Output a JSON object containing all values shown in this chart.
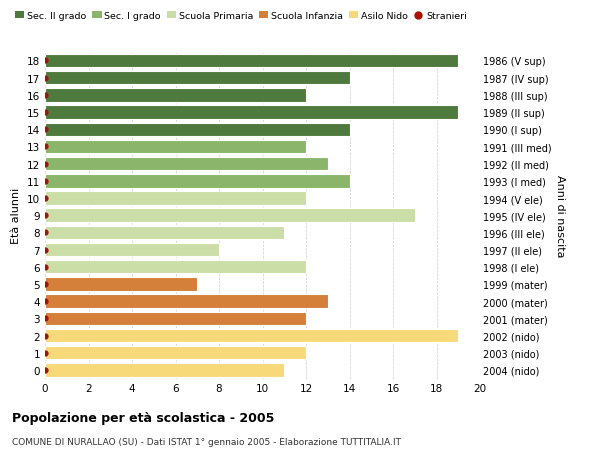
{
  "ages": [
    0,
    1,
    2,
    3,
    4,
    5,
    6,
    7,
    8,
    9,
    10,
    11,
    12,
    13,
    14,
    15,
    16,
    17,
    18
  ],
  "values": [
    11,
    12,
    19,
    12,
    13,
    7,
    12,
    8,
    11,
    17,
    12,
    14,
    13,
    12,
    14,
    19,
    12,
    14,
    19
  ],
  "years": [
    "2004 (nido)",
    "2003 (nido)",
    "2002 (nido)",
    "2001 (mater)",
    "2000 (mater)",
    "1999 (mater)",
    "1998 (I ele)",
    "1997 (II ele)",
    "1996 (III ele)",
    "1995 (IV ele)",
    "1994 (V ele)",
    "1993 (I med)",
    "1992 (II med)",
    "1991 (III med)",
    "1990 (I sup)",
    "1989 (II sup)",
    "1988 (III sup)",
    "1987 (IV sup)",
    "1986 (V sup)"
  ],
  "colors": [
    "#f8d97a",
    "#f8d97a",
    "#f8d97a",
    "#d4803a",
    "#d4803a",
    "#d4803a",
    "#ccdea8",
    "#ccdea8",
    "#ccdea8",
    "#ccdea8",
    "#ccdea8",
    "#8ab56b",
    "#8ab56b",
    "#8ab56b",
    "#4e7a3e",
    "#4e7a3e",
    "#4e7a3e",
    "#4e7a3e",
    "#4e7a3e"
  ],
  "legend_labels": [
    "Sec. II grado",
    "Sec. I grado",
    "Scuola Primaria",
    "Scuola Infanzia",
    "Asilo Nido",
    "Stranieri"
  ],
  "legend_colors": [
    "#4e7a3e",
    "#8ab56b",
    "#ccdea8",
    "#d4803a",
    "#f8d97a",
    "#cc2200"
  ],
  "title": "Popolazione per età scolastica - 2005",
  "subtitle": "COMUNE DI NURALLAO (SU) - Dati ISTAT 1° gennaio 2005 - Elaborazione TUTTITALIA.IT",
  "ylabel_left": "Età alunni",
  "ylabel_right": "Anni di nascita",
  "xlim": [
    0,
    20
  ],
  "bar_height": 0.78,
  "bg_color": "#ffffff",
  "grid_color": "#cccccc",
  "stranieri_dot_color": "#aa1100"
}
